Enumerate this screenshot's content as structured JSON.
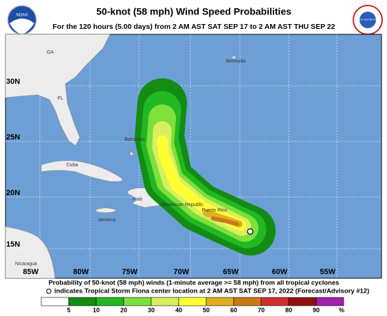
{
  "header": {
    "title": "50-knot (58 mph) Wind Speed Probabilities",
    "subtitle": "For the 120 hours (5.00 days) from 2 AM AST SAT SEP 17 to 2 AM AST THU SEP 22",
    "logo_left": "NOAA",
    "logo_right": "NATIONAL WEATHER SERVICE"
  },
  "map": {
    "lat_labels": [
      "30N",
      "25N",
      "20N",
      "15N"
    ],
    "lon_labels": [
      "85W",
      "80W",
      "75W",
      "70W",
      "65W",
      "60W",
      "55W"
    ],
    "places": [
      "GA",
      "FL",
      "Bermuda",
      "Bahamas",
      "Cuba",
      "Haiti",
      "Dominican Republic",
      "Puerto Rico",
      "Jamaica",
      "Nicaragua"
    ]
  },
  "caption": {
    "line1": "Probability of 50-knot (58 mph) winds (1-minute average >= 58 mph) from all tropical cyclones",
    "line2": "indicates Tropical Storm Fiona center location at 2 AM AST SAT SEP 17, 2022 (Forecast/Advisory #12)"
  },
  "legend": {
    "thresholds": [
      5,
      10,
      20,
      30,
      40,
      50,
      60,
      70,
      80,
      90
    ],
    "unit": "%",
    "colors": [
      "#ffffff",
      "#128c12",
      "#22b822",
      "#7ee03a",
      "#d8f060",
      "#ffff33",
      "#e0b020",
      "#c87a18",
      "#d03030",
      "#901010",
      "#a020b0"
    ]
  }
}
